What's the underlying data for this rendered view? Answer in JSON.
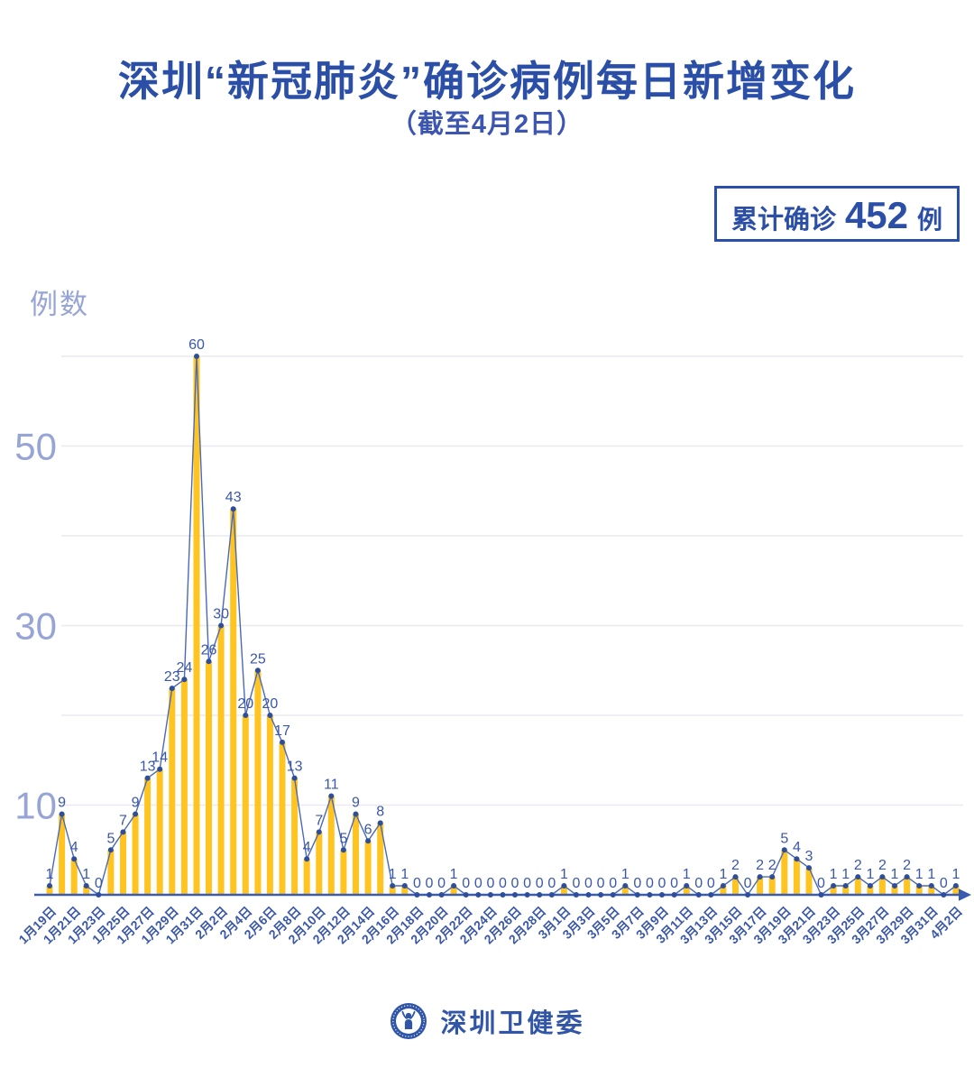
{
  "header": {
    "title": "深圳“新冠肺炎”确诊病例每日新增变化",
    "subtitle": "（截至4月2日）"
  },
  "badge": {
    "label": "累计确诊",
    "value": "452",
    "unit": "例"
  },
  "footer": {
    "org": "深圳卫健委",
    "logo_icon": "shenzhen-health-commission-emblem"
  },
  "colors": {
    "title_blue": "#2b4fa7",
    "bar_yellow": "#ffc41f",
    "line_blue": "#4a69b8",
    "dot_blue": "#2d4e9c",
    "value_label_blue": "#3a57a8",
    "axis_blue": "#3a5bb0",
    "tick_periwinkle": "#97a4d6",
    "gridline_gray": "#e9e9ef"
  },
  "chart_data": {
    "type": "bar",
    "overlay": "line",
    "title": "深圳“新冠肺炎”确诊病例每日新增变化",
    "xlabel": "",
    "ylabel": "例数",
    "ylim": [
      0,
      62
    ],
    "grid": true,
    "gridline_values": [
      10,
      20,
      30,
      40,
      50,
      60
    ],
    "ytick_values": [
      10,
      30,
      50
    ],
    "x_label_step": 2,
    "cumulative_total": 452,
    "categories": [
      "1月19日",
      "1月20日",
      "1月21日",
      "1月22日",
      "1月23日",
      "1月24日",
      "1月25日",
      "1月26日",
      "1月27日",
      "1月28日",
      "1月29日",
      "1月30日",
      "1月31日",
      "2月1日",
      "2月2日",
      "2月3日",
      "2月4日",
      "2月5日",
      "2月6日",
      "2月7日",
      "2月8日",
      "2月9日",
      "2月10日",
      "2月11日",
      "2月12日",
      "2月13日",
      "2月14日",
      "2月15日",
      "2月16日",
      "2月17日",
      "2月18日",
      "2月19日",
      "2月20日",
      "2月21日",
      "2月22日",
      "2月23日",
      "2月24日",
      "2月25日",
      "2月26日",
      "2月27日",
      "2月28日",
      "2月29日",
      "3月1日",
      "3月2日",
      "3月3日",
      "3月4日",
      "3月5日",
      "3月6日",
      "3月7日",
      "3月8日",
      "3月9日",
      "3月10日",
      "3月11日",
      "3月12日",
      "3月13日",
      "3月14日",
      "3月15日",
      "3月16日",
      "3月17日",
      "3月18日",
      "3月19日",
      "3月20日",
      "3月21日",
      "3月22日",
      "3月23日",
      "3月24日",
      "3月25日",
      "3月26日",
      "3月27日",
      "3月28日",
      "3月29日",
      "3月30日",
      "3月31日",
      "4月1日",
      "4月2日"
    ],
    "values": [
      1,
      9,
      4,
      1,
      0,
      5,
      7,
      9,
      13,
      14,
      23,
      24,
      60,
      26,
      30,
      43,
      20,
      25,
      20,
      17,
      13,
      4,
      7,
      11,
      5,
      9,
      6,
      8,
      1,
      1,
      0,
      0,
      0,
      1,
      0,
      0,
      0,
      0,
      0,
      0,
      0,
      0,
      1,
      0,
      0,
      0,
      0,
      1,
      0,
      0,
      0,
      0,
      1,
      0,
      0,
      1,
      2,
      0,
      2,
      2,
      5,
      4,
      3,
      0,
      1,
      1,
      2,
      1,
      2,
      1,
      2,
      1,
      1,
      0,
      1
    ]
  }
}
